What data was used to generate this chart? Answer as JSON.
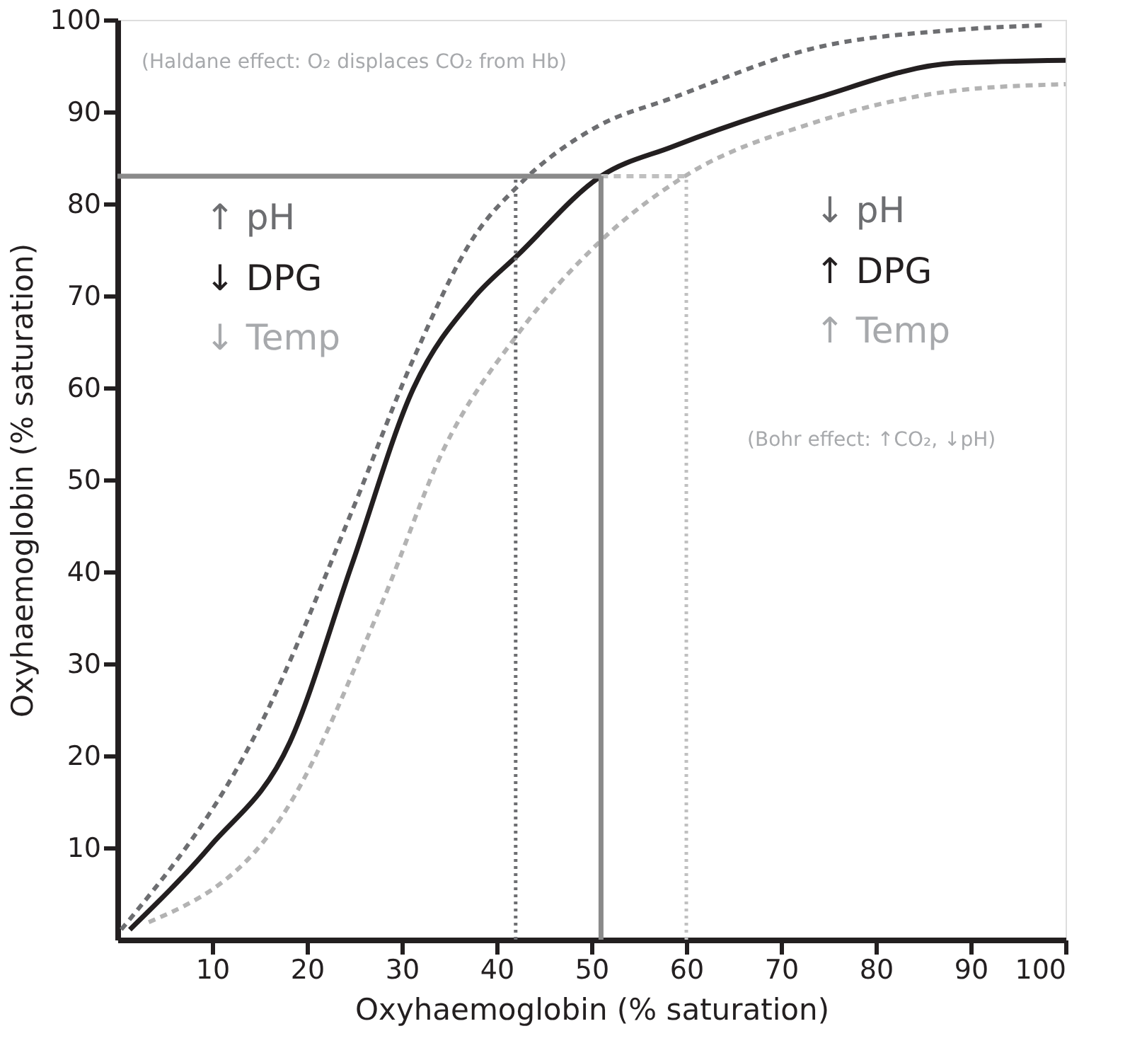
{
  "chart_data": {
    "type": "line",
    "xlabel": "Oxyhaemoglobin (% saturation)",
    "ylabel": "Oxyhaemoglobin (% saturation)",
    "xlim": [
      0,
      100
    ],
    "ylim": [
      0,
      100
    ],
    "xticks": [
      10,
      20,
      30,
      40,
      50,
      60,
      70,
      80,
      90,
      100
    ],
    "yticks": [
      10,
      20,
      30,
      40,
      50,
      60,
      70,
      80,
      90,
      100
    ],
    "grid": false,
    "marker": "none",
    "series": [
      {
        "color": "#6d6e71",
        "line_style": "dashed",
        "x": [
          0.4,
          15,
          24.7,
          31.2,
          37.6,
          42.2,
          50.6,
          58.5,
          73.4,
          88.4,
          97.6
        ],
        "values": [
          1.1,
          23.2,
          46.5,
          63.1,
          76.4,
          81.9,
          88.4,
          91.5,
          96.9,
          98.9,
          99.4
        ]
      },
      {
        "color": "#b3b3b3",
        "line_style": "dashed",
        "x": [
          3.3,
          18.2,
          27.9,
          34.4,
          42.2,
          51,
          60,
          73.4,
          88.4,
          100
        ],
        "values": [
          1.9,
          14.8,
          36.6,
          53.3,
          65.8,
          76,
          83.1,
          88.8,
          92.3,
          93
        ]
      },
      {
        "color": "#231f20",
        "line_style": "solid",
        "x": [
          1.3,
          9.8,
          18.2,
          24.7,
          31.2,
          37.6,
          42.2,
          51,
          58.5,
          73.4,
          88.4,
          100
        ],
        "values": [
          1.1,
          10.2,
          21.5,
          40.7,
          59.9,
          69.8,
          74.4,
          83,
          86.2,
          91.4,
          95.3,
          95.6
        ]
      },
      {
        "color": "#8a8a8a",
        "line_style": "solid",
        "x": [
          0,
          51
        ],
        "values": [
          83,
          83
        ]
      },
      {
        "color": "#c0c0c0",
        "line_style": "dashed",
        "x": [
          51,
          60
        ],
        "values": [
          83,
          83
        ]
      },
      {
        "color": "#6d6e71",
        "line_style": "dotted",
        "x": [
          42,
          42
        ],
        "values": [
          0,
          83
        ]
      },
      {
        "color": "#8a8a8a",
        "line_style": "solid",
        "x": [
          51,
          51
        ],
        "values": [
          0,
          83
        ]
      },
      {
        "color": "#c0c0c0",
        "line_style": "dotted",
        "x": [
          60,
          60
        ],
        "values": [
          0,
          83
        ]
      }
    ],
    "annotations": [
      "(Haldane effect: O₂ displaces CO₂ from Hb)",
      "↑ pH",
      "↓ DPG",
      "↓ Temp",
      "↓ pH",
      "↑ DPG",
      "↑ Temp",
      "(Bohr effect: ↑CO₂, ↓pH)"
    ]
  }
}
